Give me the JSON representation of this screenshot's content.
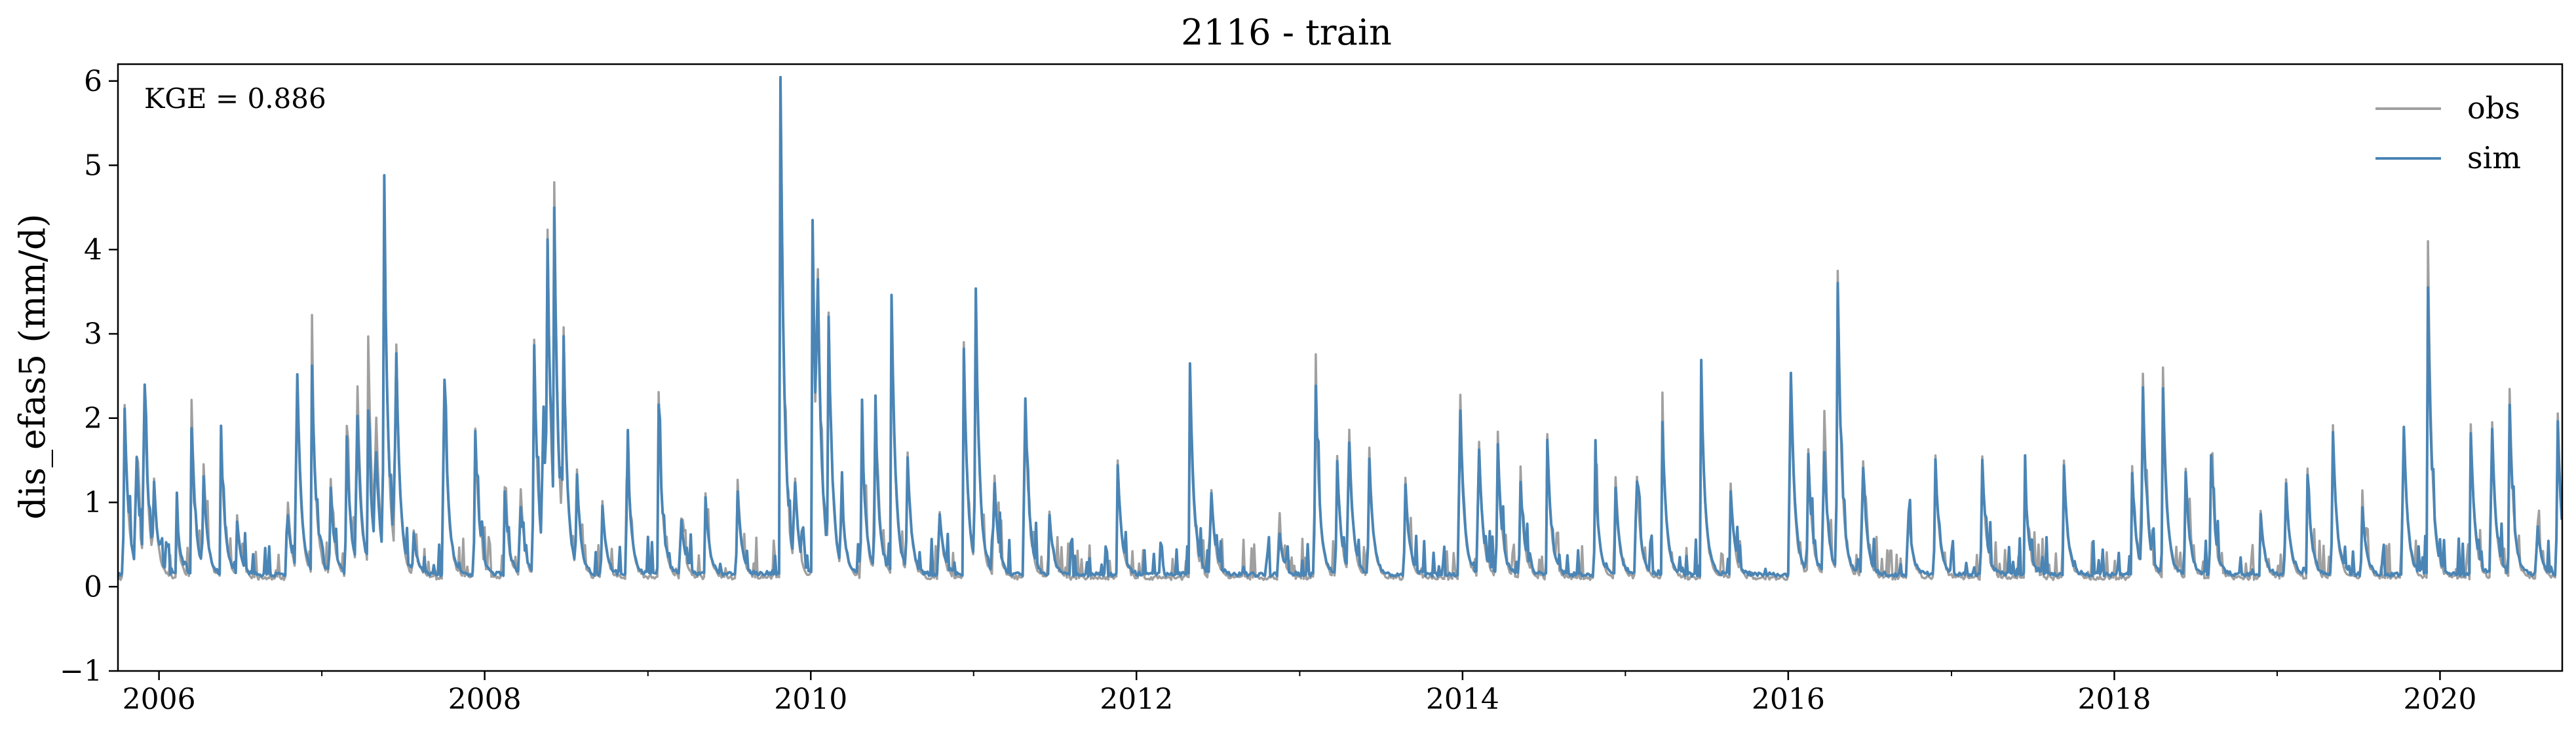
{
  "chart_data": {
    "type": "line",
    "title": "2116 - train",
    "xlabel": "",
    "ylabel": "dis_efas5 (mm/d)",
    "xlim": [
      "2005-10-01",
      "2020-10-01"
    ],
    "ylim": [
      -1,
      6.2
    ],
    "y_ticks": [
      -1,
      0,
      1,
      2,
      3,
      4,
      5,
      6
    ],
    "y_tick_labels": [
      "−1",
      "0",
      "1",
      "2",
      "3",
      "4",
      "5",
      "6"
    ],
    "x_ticks": [
      "2006-01-01",
      "2008-01-01",
      "2010-01-01",
      "2012-01-01",
      "2014-01-01",
      "2016-01-01",
      "2018-01-01",
      "2020-01-01"
    ],
    "x_tick_labels": [
      "2006",
      "2008",
      "2010",
      "2012",
      "2014",
      "2016",
      "2018",
      "2020"
    ],
    "x_minor_ticks": [
      "2007-01-01",
      "2009-01-01",
      "2011-01-01",
      "2013-01-01",
      "2015-01-01",
      "2017-01-01",
      "2019-01-01"
    ],
    "annotation": "KGE = 0.886",
    "grid": false,
    "legend_position": "top-right",
    "series": [
      {
        "name": "obs",
        "color": "#a0a0a0",
        "baseline": 0.08,
        "peaks": [
          [
            "2005-10-15",
            2.3
          ],
          [
            "2005-11-10",
            1.5
          ],
          [
            "2005-11-28",
            2.5
          ],
          [
            "2005-12-20",
            1.1
          ],
          [
            "2006-02-10",
            0.6
          ],
          [
            "2006-03-15",
            2.1
          ],
          [
            "2006-04-10",
            1.4
          ],
          [
            "2006-05-20",
            1.7
          ],
          [
            "2006-06-25",
            0.7
          ],
          [
            "2006-10-15",
            1.1
          ],
          [
            "2006-11-05",
            2.8
          ],
          [
            "2006-12-10",
            2.6
          ],
          [
            "2007-01-20",
            1.3
          ],
          [
            "2007-02-25",
            2.0
          ],
          [
            "2007-03-20",
            2.7
          ],
          [
            "2007-04-15",
            2.7
          ],
          [
            "2007-05-01",
            1.9
          ],
          [
            "2007-05-20",
            4.6
          ],
          [
            "2007-06-15",
            3.2
          ],
          [
            "2007-07-25",
            0.6
          ],
          [
            "2007-10-01",
            2.9
          ],
          [
            "2007-12-10",
            2.0
          ],
          [
            "2008-02-15",
            1.1
          ],
          [
            "2008-03-20",
            1.3
          ],
          [
            "2008-04-20",
            3.1
          ],
          [
            "2008-05-10",
            2.1
          ],
          [
            "2008-05-20",
            3.8
          ],
          [
            "2008-06-05",
            3.9
          ],
          [
            "2008-06-25",
            2.8
          ],
          [
            "2008-07-25",
            1.3
          ],
          [
            "2008-09-20",
            1.0
          ],
          [
            "2008-11-15",
            1.8
          ],
          [
            "2009-01-25",
            2.2
          ],
          [
            "2009-03-15",
            0.9
          ],
          [
            "2009-05-10",
            1.0
          ],
          [
            "2009-07-20",
            1.3
          ],
          [
            "2009-10-25",
            5.8
          ],
          [
            "2009-11-25",
            1.3
          ],
          [
            "2010-01-05",
            4.1
          ],
          [
            "2010-01-15",
            3.2
          ],
          [
            "2010-02-10",
            2.9
          ],
          [
            "2010-03-10",
            1.1
          ],
          [
            "2010-04-25",
            2.0
          ],
          [
            "2010-05-25",
            2.3
          ],
          [
            "2010-07-01",
            3.3
          ],
          [
            "2010-08-05",
            1.6
          ],
          [
            "2010-10-15",
            1.0
          ],
          [
            "2010-12-10",
            2.8
          ],
          [
            "2011-01-05",
            3.4
          ],
          [
            "2011-02-15",
            1.5
          ],
          [
            "2011-04-25",
            2.5
          ],
          [
            "2011-06-20",
            0.8
          ],
          [
            "2011-11-20",
            1.4
          ],
          [
            "2012-04-30",
            2.3
          ],
          [
            "2012-06-15",
            1.3
          ],
          [
            "2012-11-15",
            0.8
          ],
          [
            "2013-02-05",
            2.6
          ],
          [
            "2013-03-25",
            1.6
          ],
          [
            "2013-04-20",
            2.1
          ],
          [
            "2013-06-05",
            1.7
          ],
          [
            "2013-08-25",
            1.3
          ],
          [
            "2013-12-25",
            2.7
          ],
          [
            "2014-02-05",
            2.0
          ],
          [
            "2014-03-20",
            1.9
          ],
          [
            "2014-05-10",
            1.3
          ],
          [
            "2014-07-10",
            1.7
          ],
          [
            "2014-10-25",
            1.4
          ],
          [
            "2014-12-10",
            1.2
          ],
          [
            "2015-01-25",
            1.5
          ],
          [
            "2015-03-25",
            1.9
          ],
          [
            "2015-06-20",
            2.4
          ],
          [
            "2015-08-25",
            1.1
          ],
          [
            "2016-01-05",
            2.9
          ],
          [
            "2016-02-15",
            1.5
          ],
          [
            "2016-03-20",
            1.9
          ],
          [
            "2016-04-20",
            4.0
          ],
          [
            "2016-06-15",
            1.7
          ],
          [
            "2016-09-25",
            1.0
          ],
          [
            "2016-11-25",
            1.6
          ],
          [
            "2017-03-10",
            1.6
          ],
          [
            "2017-06-15",
            1.2
          ],
          [
            "2017-09-10",
            1.4
          ],
          [
            "2018-02-10",
            1.3
          ],
          [
            "2018-03-05",
            2.6
          ],
          [
            "2018-04-20",
            2.5
          ],
          [
            "2018-06-10",
            1.3
          ],
          [
            "2018-08-05",
            1.6
          ],
          [
            "2018-11-25",
            0.8
          ],
          [
            "2019-01-20",
            1.3
          ],
          [
            "2019-03-10",
            1.3
          ],
          [
            "2019-05-05",
            2.0
          ],
          [
            "2019-07-10",
            1.0
          ],
          [
            "2019-10-10",
            2.2
          ],
          [
            "2019-12-05",
            3.9
          ],
          [
            "2020-03-10",
            1.8
          ],
          [
            "2020-04-25",
            2.3
          ],
          [
            "2020-06-05",
            2.2
          ],
          [
            "2020-08-05",
            0.8
          ],
          [
            "2020-09-20",
            2.2
          ]
        ]
      },
      {
        "name": "sim",
        "color": "#4a85b5",
        "baseline": 0.12,
        "peaks": [
          [
            "2005-10-15",
            2.2
          ],
          [
            "2005-11-10",
            1.6
          ],
          [
            "2005-11-28",
            2.6
          ],
          [
            "2005-12-20",
            1.0
          ],
          [
            "2006-02-10",
            0.7
          ],
          [
            "2006-03-15",
            1.7
          ],
          [
            "2006-04-10",
            1.2
          ],
          [
            "2006-05-20",
            1.6
          ],
          [
            "2006-06-25",
            0.6
          ],
          [
            "2006-10-15",
            0.9
          ],
          [
            "2006-11-05",
            2.9
          ],
          [
            "2006-12-10",
            2.4
          ],
          [
            "2007-01-20",
            1.1
          ],
          [
            "2007-02-25",
            1.8
          ],
          [
            "2007-03-20",
            2.2
          ],
          [
            "2007-04-15",
            1.8
          ],
          [
            "2007-05-01",
            1.5
          ],
          [
            "2007-05-20",
            4.7
          ],
          [
            "2007-06-15",
            3.0
          ],
          [
            "2007-07-25",
            0.5
          ],
          [
            "2007-10-01",
            2.9
          ],
          [
            "2007-12-10",
            1.9
          ],
          [
            "2008-02-15",
            1.0
          ],
          [
            "2008-03-20",
            1.0
          ],
          [
            "2008-04-20",
            3.0
          ],
          [
            "2008-05-10",
            2.0
          ],
          [
            "2008-05-20",
            3.7
          ],
          [
            "2008-06-05",
            3.6
          ],
          [
            "2008-06-25",
            2.7
          ],
          [
            "2008-07-25",
            1.2
          ],
          [
            "2008-09-20",
            0.9
          ],
          [
            "2008-11-15",
            1.7
          ],
          [
            "2009-01-25",
            2.0
          ],
          [
            "2009-03-15",
            0.8
          ],
          [
            "2009-05-10",
            0.9
          ],
          [
            "2009-07-20",
            1.1
          ],
          [
            "2009-10-25",
            5.9
          ],
          [
            "2009-11-25",
            1.2
          ],
          [
            "2010-01-05",
            4.2
          ],
          [
            "2010-01-15",
            3.0
          ],
          [
            "2010-02-10",
            2.8
          ],
          [
            "2010-03-10",
            1.0
          ],
          [
            "2010-04-25",
            1.9
          ],
          [
            "2010-05-25",
            2.0
          ],
          [
            "2010-07-01",
            3.3
          ],
          [
            "2010-08-05",
            1.5
          ],
          [
            "2010-10-15",
            0.9
          ],
          [
            "2010-12-10",
            2.7
          ],
          [
            "2011-01-05",
            3.4
          ],
          [
            "2011-02-15",
            1.3
          ],
          [
            "2011-04-25",
            2.6
          ],
          [
            "2011-06-20",
            0.7
          ],
          [
            "2011-11-20",
            1.3
          ],
          [
            "2012-04-30",
            2.5
          ],
          [
            "2012-06-15",
            1.2
          ],
          [
            "2012-11-15",
            0.6
          ],
          [
            "2013-02-05",
            2.5
          ],
          [
            "2013-03-25",
            1.5
          ],
          [
            "2013-04-20",
            1.9
          ],
          [
            "2013-06-05",
            1.5
          ],
          [
            "2013-08-25",
            1.2
          ],
          [
            "2013-12-25",
            2.4
          ],
          [
            "2014-02-05",
            1.8
          ],
          [
            "2014-03-20",
            1.7
          ],
          [
            "2014-05-10",
            1.2
          ],
          [
            "2014-07-10",
            1.6
          ],
          [
            "2014-10-25",
            1.3
          ],
          [
            "2014-12-10",
            1.0
          ],
          [
            "2015-01-25",
            1.4
          ],
          [
            "2015-03-25",
            1.8
          ],
          [
            "2015-06-20",
            2.4
          ],
          [
            "2015-08-25",
            1.0
          ],
          [
            "2016-01-05",
            3.0
          ],
          [
            "2016-02-15",
            1.4
          ],
          [
            "2016-03-20",
            1.8
          ],
          [
            "2016-04-20",
            3.8
          ],
          [
            "2016-06-15",
            1.6
          ],
          [
            "2016-09-25",
            0.9
          ],
          [
            "2016-11-25",
            1.5
          ],
          [
            "2017-03-10",
            1.5
          ],
          [
            "2017-06-15",
            1.1
          ],
          [
            "2017-09-10",
            1.3
          ],
          [
            "2018-02-10",
            1.2
          ],
          [
            "2018-03-05",
            2.4
          ],
          [
            "2018-04-20",
            2.2
          ],
          [
            "2018-06-10",
            1.2
          ],
          [
            "2018-08-05",
            1.6
          ],
          [
            "2018-11-25",
            0.7
          ],
          [
            "2019-01-20",
            1.2
          ],
          [
            "2019-03-10",
            1.2
          ],
          [
            "2019-05-05",
            1.9
          ],
          [
            "2019-07-10",
            0.9
          ],
          [
            "2019-10-10",
            2.2
          ],
          [
            "2019-12-05",
            3.4
          ],
          [
            "2020-03-10",
            1.7
          ],
          [
            "2020-04-25",
            2.1
          ],
          [
            "2020-06-05",
            2.0
          ],
          [
            "2020-08-05",
            0.7
          ],
          [
            "2020-09-20",
            2.0
          ]
        ]
      }
    ]
  }
}
